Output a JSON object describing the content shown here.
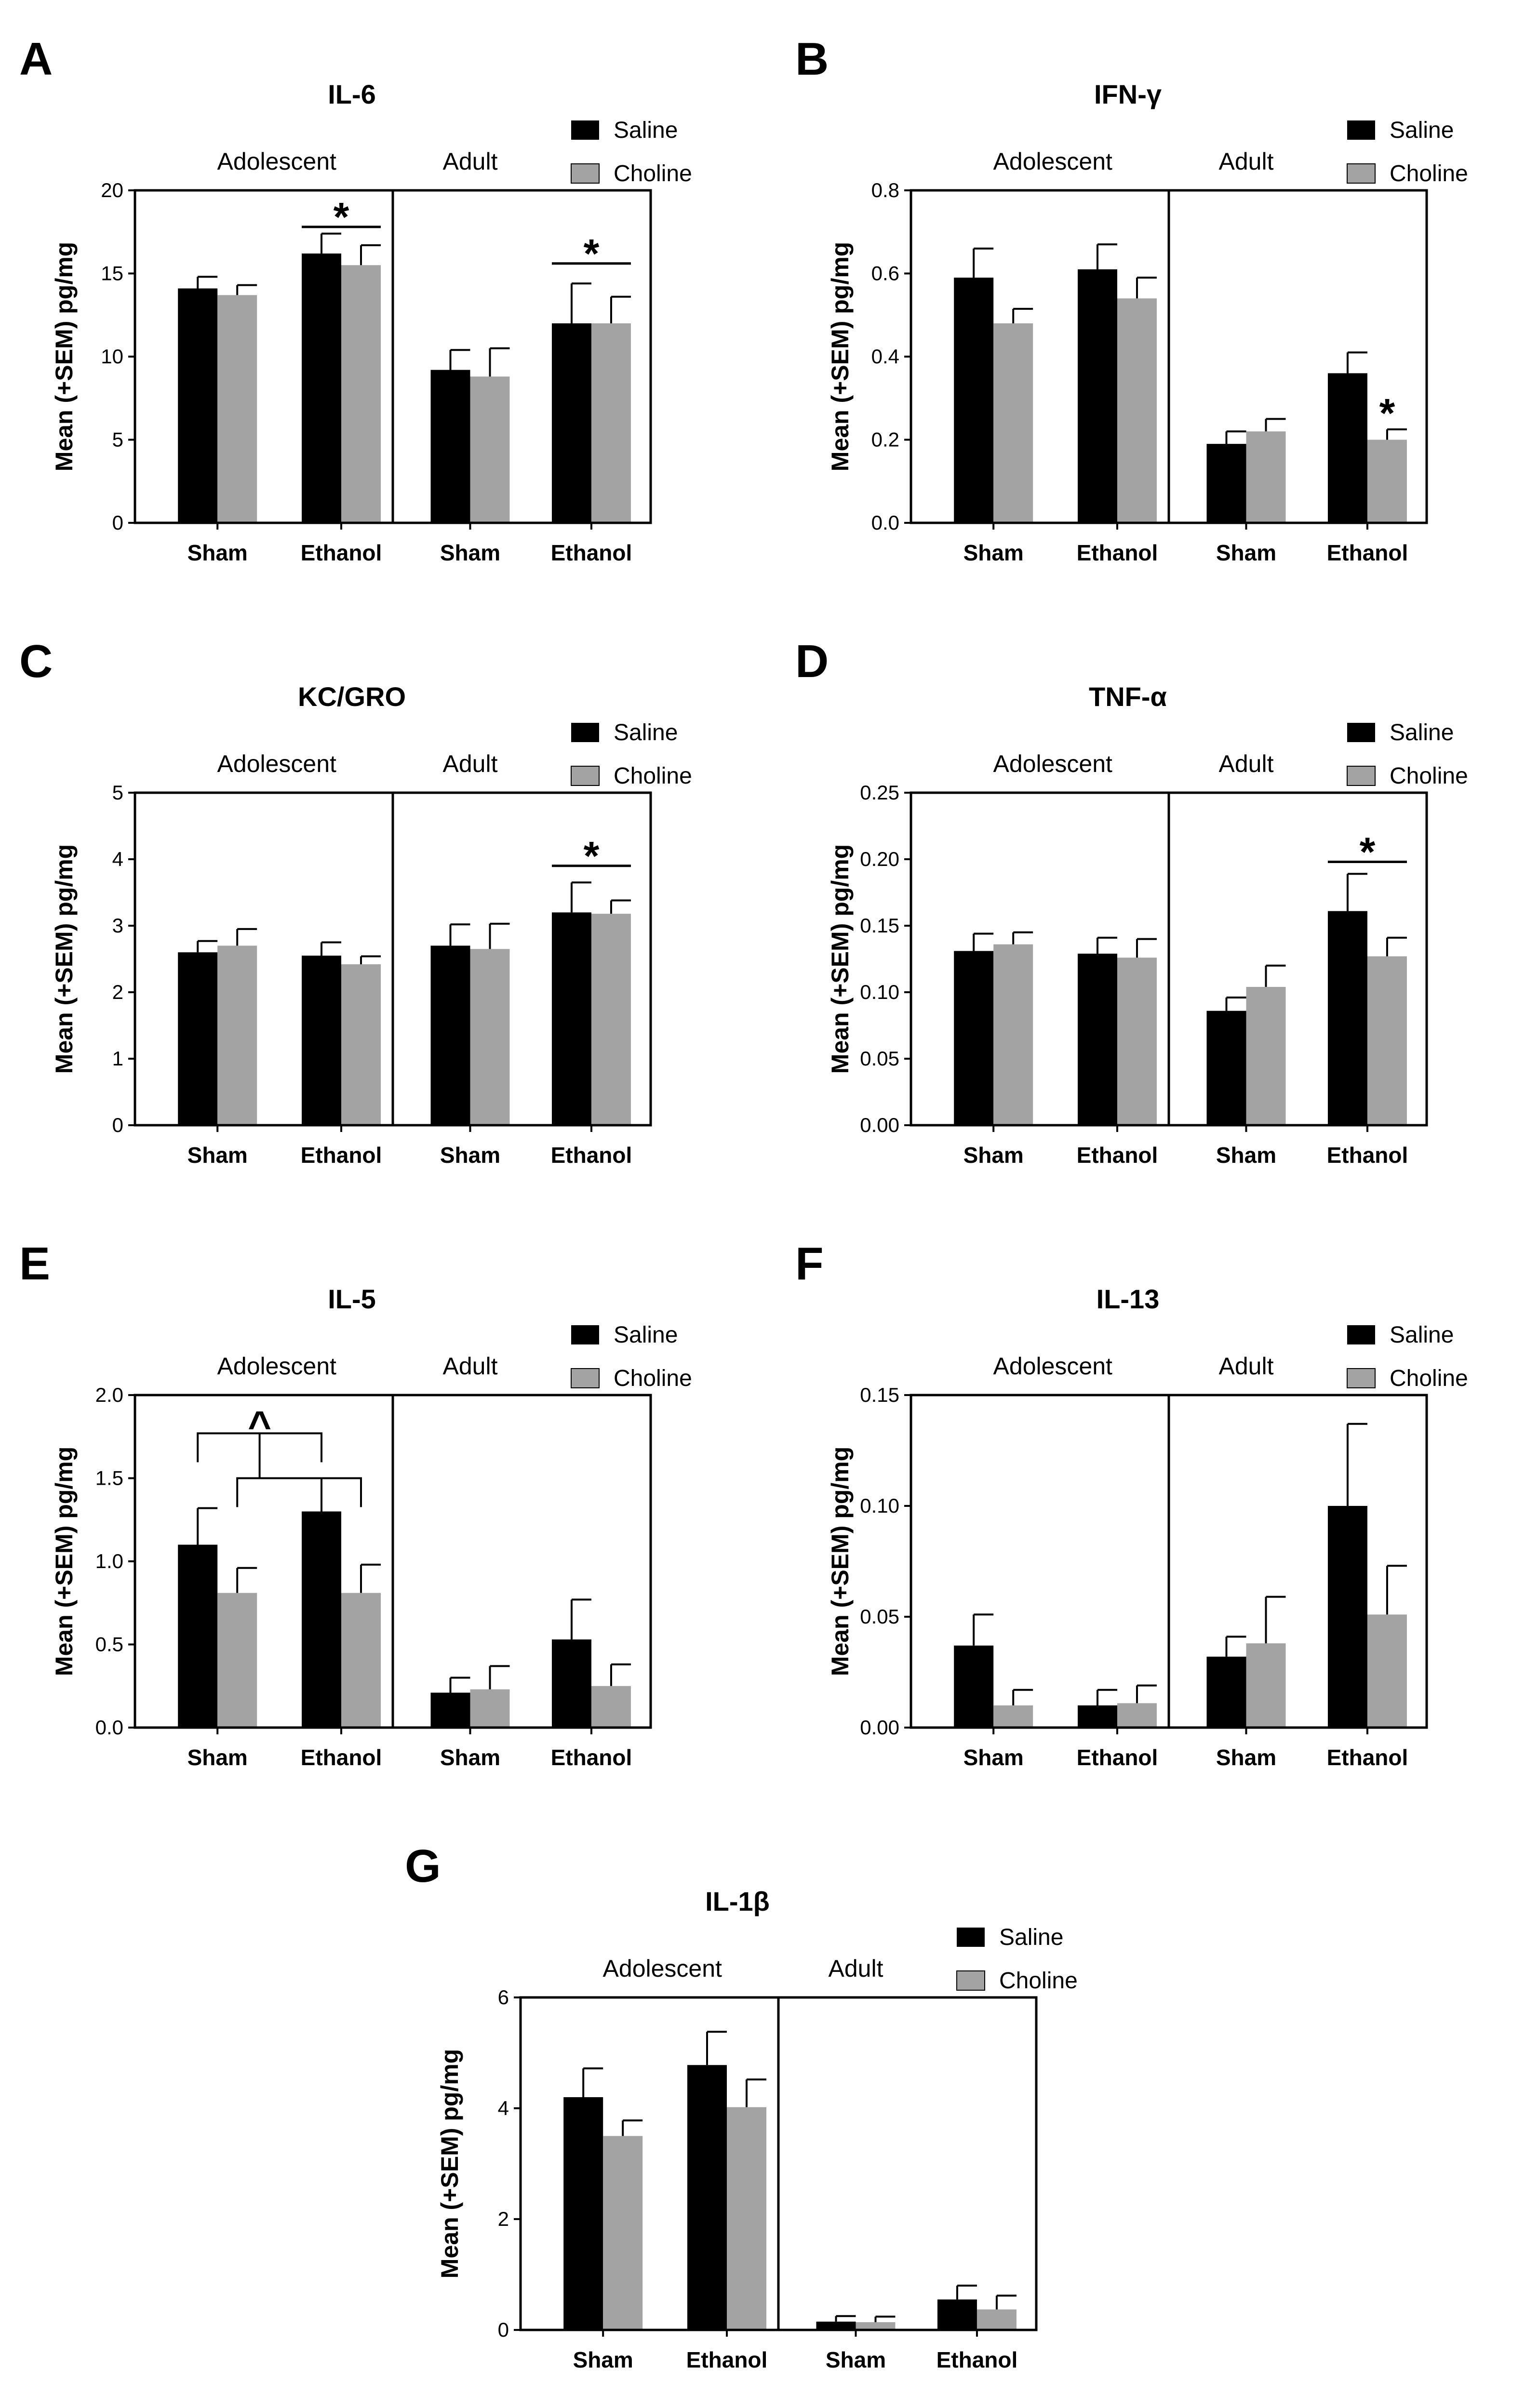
{
  "figure": {
    "legend": {
      "saline": "Saline",
      "choline": "Choline"
    },
    "colors": {
      "saline": "#000000",
      "choline": "#a3a3a3"
    }
  },
  "chart_data": [
    {
      "type": "bar",
      "panel": "A",
      "title": "IL-6",
      "groups": [
        "Adolescent",
        "Adult"
      ],
      "categories": [
        "Sham",
        "Ethanol",
        "Sham",
        "Ethanol"
      ],
      "ylabel": "Mean (+SEM) pg/mg",
      "ylim": [
        0,
        20
      ],
      "yticks": [
        "0",
        "5",
        "10",
        "15",
        "20"
      ],
      "series": [
        {
          "name": "Saline",
          "values": [
            14.1,
            16.2,
            9.2,
            12.0
          ],
          "sem": [
            0.7,
            1.2,
            1.2,
            2.4
          ]
        },
        {
          "name": "Choline",
          "values": [
            13.7,
            15.5,
            8.8,
            12.0
          ],
          "sem": [
            0.6,
            1.2,
            1.7,
            1.6
          ]
        }
      ],
      "annotations": [
        {
          "symbol": "*",
          "pair_bars": [
            2,
            3
          ],
          "y": 17.8
        },
        {
          "symbol": "*",
          "pair_bars": [
            6,
            7
          ],
          "y": 15.6
        }
      ]
    },
    {
      "type": "bar",
      "panel": "B",
      "title": "IFN-γ",
      "groups": [
        "Adolescent",
        "Adult"
      ],
      "categories": [
        "Sham",
        "Ethanol",
        "Sham",
        "Ethanol"
      ],
      "ylabel": "Mean (+SEM) pg/mg",
      "ylim": [
        0,
        0.8
      ],
      "yticks": [
        "0.0",
        "0.2",
        "0.4",
        "0.6",
        "0.8"
      ],
      "series": [
        {
          "name": "Saline",
          "values": [
            0.59,
            0.61,
            0.19,
            0.36
          ],
          "sem": [
            0.07,
            0.06,
            0.03,
            0.05
          ]
        },
        {
          "name": "Choline",
          "values": [
            0.48,
            0.54,
            0.22,
            0.2
          ],
          "sem": [
            0.035,
            0.05,
            0.03,
            0.025
          ]
        }
      ],
      "annotations": [
        {
          "symbol": "*",
          "bar": 7,
          "y": 0.24
        }
      ]
    },
    {
      "type": "bar",
      "panel": "C",
      "title": "KC/GRO",
      "groups": [
        "Adolescent",
        "Adult"
      ],
      "categories": [
        "Sham",
        "Ethanol",
        "Sham",
        "Ethanol"
      ],
      "ylabel": "Mean (+SEM) pg/mg",
      "ylim": [
        0,
        5
      ],
      "yticks": [
        "0",
        "1",
        "2",
        "3",
        "4",
        "5"
      ],
      "series": [
        {
          "name": "Saline",
          "values": [
            2.6,
            2.55,
            2.7,
            3.2
          ],
          "sem": [
            0.17,
            0.2,
            0.32,
            0.45
          ]
        },
        {
          "name": "Choline",
          "values": [
            2.7,
            2.42,
            2.65,
            3.18
          ],
          "sem": [
            0.25,
            0.12,
            0.38,
            0.2
          ]
        }
      ],
      "annotations": [
        {
          "symbol": "*",
          "pair_bars": [
            6,
            7
          ],
          "y": 3.9
        }
      ]
    },
    {
      "type": "bar",
      "panel": "D",
      "title": "TNF-α",
      "groups": [
        "Adolescent",
        "Adult"
      ],
      "categories": [
        "Sham",
        "Ethanol",
        "Sham",
        "Ethanol"
      ],
      "ylabel": "Mean (+SEM) pg/mg",
      "ylim": [
        0,
        0.25
      ],
      "yticks": [
        "0.00",
        "0.05",
        "0.10",
        "0.15",
        "0.20",
        "0.25"
      ],
      "series": [
        {
          "name": "Saline",
          "values": [
            0.131,
            0.129,
            0.086,
            0.161
          ],
          "sem": [
            0.013,
            0.012,
            0.01,
            0.028
          ]
        },
        {
          "name": "Choline",
          "values": [
            0.136,
            0.126,
            0.104,
            0.127
          ],
          "sem": [
            0.009,
            0.014,
            0.016,
            0.014
          ]
        }
      ],
      "annotations": [
        {
          "symbol": "*",
          "pair_bars": [
            6,
            7
          ],
          "y": 0.198
        }
      ]
    },
    {
      "type": "bar",
      "panel": "E",
      "title": "IL-5",
      "groups": [
        "Adolescent",
        "Adult"
      ],
      "categories": [
        "Sham",
        "Ethanol",
        "Sham",
        "Ethanol"
      ],
      "ylabel": "Mean (+SEM) pg/mg",
      "ylim": [
        0,
        2.0
      ],
      "yticks": [
        "0.0",
        "0.5",
        "1.0",
        "1.5",
        "2.0"
      ],
      "series": [
        {
          "name": "Saline",
          "values": [
            1.1,
            1.3,
            0.21,
            0.53
          ],
          "sem": [
            0.22,
            0.2,
            0.09,
            0.24
          ]
        },
        {
          "name": "Choline",
          "values": [
            0.81,
            0.81,
            0.23,
            0.25
          ],
          "sem": [
            0.15,
            0.17,
            0.14,
            0.13
          ]
        }
      ],
      "annotations": [
        {
          "symbol": "^",
          "type": "interaction",
          "bracket_high": [
            0,
            2
          ],
          "bracket_low": [
            1,
            3
          ],
          "y_high": 1.77,
          "y_low": 1.5,
          "y_top": 1.82
        }
      ]
    },
    {
      "type": "bar",
      "panel": "F",
      "title": "IL-13",
      "groups": [
        "Adolescent",
        "Adult"
      ],
      "categories": [
        "Sham",
        "Ethanol",
        "Sham",
        "Ethanol"
      ],
      "ylabel": "Mean (+SEM) pg/mg",
      "ylim": [
        0,
        0.15
      ],
      "yticks": [
        "0.00",
        "0.05",
        "0.10",
        "0.15"
      ],
      "series": [
        {
          "name": "Saline",
          "values": [
            0.037,
            0.01,
            0.032,
            0.1
          ],
          "sem": [
            0.014,
            0.007,
            0.009,
            0.037
          ]
        },
        {
          "name": "Choline",
          "values": [
            0.01,
            0.011,
            0.038,
            0.051
          ],
          "sem": [
            0.007,
            0.008,
            0.021,
            0.022
          ]
        }
      ],
      "annotations": []
    },
    {
      "type": "bar",
      "panel": "G",
      "title": "IL-1β",
      "groups": [
        "Adolescent",
        "Adult"
      ],
      "categories": [
        "Sham",
        "Ethanol",
        "Sham",
        "Ethanol"
      ],
      "ylabel": "Mean (+SEM) pg/mg",
      "ylim": [
        0,
        6
      ],
      "yticks": [
        "0",
        "2",
        "4",
        "6"
      ],
      "series": [
        {
          "name": "Saline",
          "values": [
            4.2,
            4.78,
            0.15,
            0.55
          ],
          "sem": [
            0.52,
            0.6,
            0.1,
            0.25
          ]
        },
        {
          "name": "Choline",
          "values": [
            3.5,
            4.02,
            0.14,
            0.37
          ],
          "sem": [
            0.28,
            0.5,
            0.1,
            0.25
          ]
        }
      ],
      "annotations": []
    }
  ]
}
